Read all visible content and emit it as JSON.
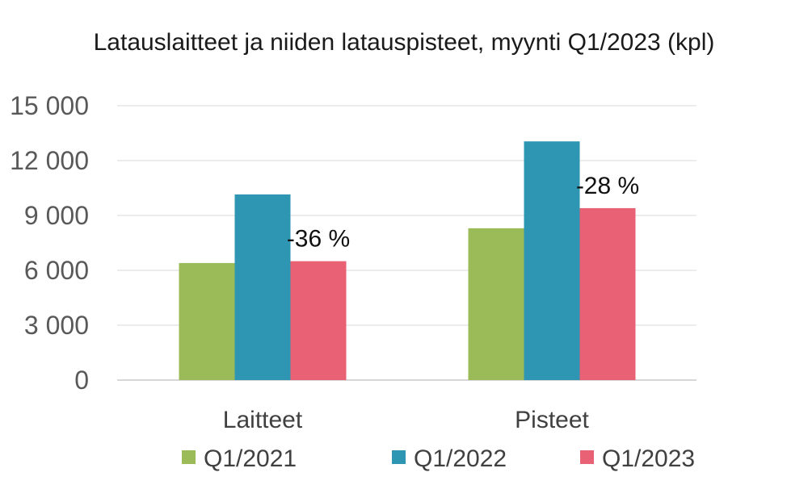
{
  "chart_data": {
    "type": "bar",
    "title": "Latauslaitteet ja niiden latauspisteet, myynti Q1/2023 (kpl)",
    "xlabel": "",
    "ylabel": "",
    "categories": [
      "Laitteet",
      "Pisteet"
    ],
    "series": [
      {
        "name": "Q1/2021",
        "color": "#9bbb59",
        "values": [
          6400,
          8300
        ]
      },
      {
        "name": "Q1/2022",
        "color": "#2e96b3",
        "values": [
          10150,
          13050
        ]
      },
      {
        "name": "Q1/2023",
        "color": "#e86174",
        "values": [
          6500,
          9400
        ]
      }
    ],
    "ylim": [
      0,
      15000
    ],
    "yticks": [
      0,
      3000,
      6000,
      9000,
      12000,
      15000
    ],
    "ytick_labels": [
      "0",
      "3 000",
      "6 000",
      "9 000",
      "12 000",
      "15 000"
    ],
    "annotations": [
      "-36 %",
      "-28 %"
    ],
    "grid": true,
    "legend_position": "bottom"
  }
}
